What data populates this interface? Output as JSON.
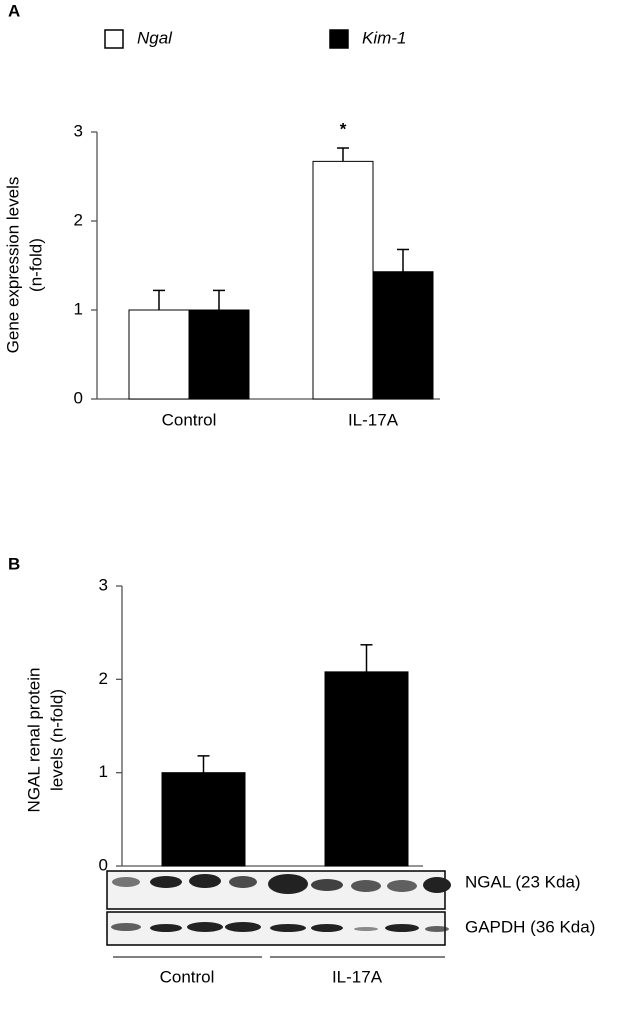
{
  "chart_data": [
    {
      "type": "bar",
      "panel": "A",
      "ylabel": [
        "Gene expression levels",
        "(n-fold)"
      ],
      "categories": [
        "Control",
        "IL-17A"
      ],
      "series": [
        {
          "name": "Ngal",
          "color": "#ffffff",
          "values": [
            1.0,
            2.67
          ],
          "errors": [
            0.22,
            0.15
          ]
        },
        {
          "name": "Kim-1",
          "color": "#000000",
          "values": [
            1.0,
            1.43
          ],
          "errors": [
            0.22,
            0.25
          ]
        }
      ],
      "annotations": [
        {
          "text": "*",
          "category": 1,
          "series": 0
        }
      ],
      "ylim": [
        0,
        3
      ],
      "yticks": [
        0,
        1,
        2,
        3
      ],
      "grid": false
    },
    {
      "type": "bar",
      "panel": "B",
      "ylabel": [
        "NGAL renal protein",
        "levels (n-fold)"
      ],
      "categories": [
        "Control",
        "IL-17A"
      ],
      "values": [
        1.0,
        2.08
      ],
      "errors": [
        0.18,
        0.29
      ],
      "color": "#000000",
      "ylim": [
        0,
        3
      ],
      "yticks": [
        0,
        1,
        2,
        3
      ],
      "grid": false,
      "blot": {
        "rows": [
          "NGAL (23 Kda)",
          "GAPDH (36 Kda)"
        ],
        "groups": [
          "Control",
          "IL-17A"
        ]
      }
    }
  ]
}
